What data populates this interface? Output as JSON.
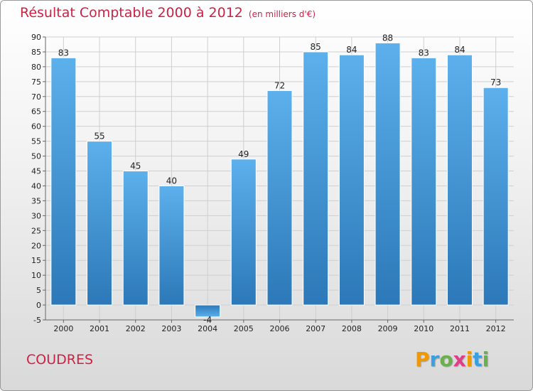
{
  "chart_data": {
    "type": "bar",
    "title": "Résultat Comptable 2000 à 2012",
    "subtitle": "(en milliers d'€)",
    "categories": [
      "2000",
      "2001",
      "2002",
      "2003",
      "2004",
      "2005",
      "2006",
      "2007",
      "2008",
      "2009",
      "2010",
      "2011",
      "2012"
    ],
    "values": [
      83,
      55,
      45,
      40,
      -4,
      49,
      72,
      85,
      84,
      88,
      83,
      84,
      73
    ],
    "ylim": [
      -5,
      90
    ],
    "yticks": [
      -5,
      0,
      5,
      10,
      15,
      20,
      25,
      30,
      35,
      40,
      45,
      50,
      55,
      60,
      65,
      70,
      75,
      80,
      85,
      90
    ],
    "grid": true,
    "bar_color": "#3d8fd6"
  },
  "footer": {
    "place": "COUDRES",
    "logo_letters": [
      "P",
      "r",
      "o",
      "x",
      "i",
      "t",
      "i"
    ],
    "logo_colors": [
      "#f29900",
      "#3aa0e0",
      "#6ab04c",
      "#e03c8a",
      "#f29900",
      "#3aa0e0",
      "#6ab04c"
    ]
  }
}
